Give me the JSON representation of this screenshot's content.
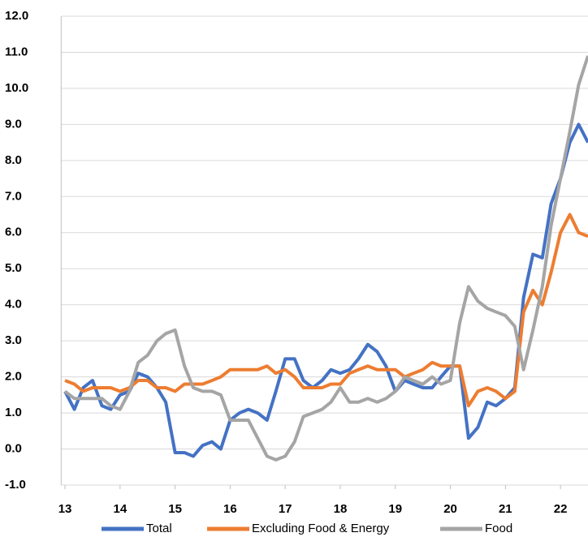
{
  "chart_data": {
    "type": "line",
    "x": [
      13,
      13.17,
      13.33,
      13.5,
      13.67,
      13.83,
      14,
      14.17,
      14.33,
      14.5,
      14.67,
      14.83,
      15,
      15.17,
      15.33,
      15.5,
      15.67,
      15.83,
      16,
      16.17,
      16.33,
      16.5,
      16.67,
      16.83,
      17,
      17.17,
      17.33,
      17.5,
      17.67,
      17.83,
      18,
      18.17,
      18.33,
      18.5,
      18.67,
      18.83,
      19,
      19.17,
      19.33,
      19.5,
      19.67,
      19.83,
      20,
      20.17,
      20.33,
      20.5,
      20.67,
      20.83,
      21,
      21.17,
      21.33,
      21.5,
      21.67,
      21.83,
      22,
      22.17,
      22.33,
      22.5
    ],
    "series": [
      {
        "name": "Total",
        "color": "#4472c4",
        "values": [
          1.6,
          1.1,
          1.7,
          1.9,
          1.2,
          1.1,
          1.5,
          1.6,
          2.1,
          2.0,
          1.7,
          1.3,
          -0.1,
          -0.1,
          -0.2,
          0.1,
          0.2,
          0.0,
          0.8,
          1.0,
          1.1,
          1.0,
          0.8,
          1.6,
          2.5,
          2.5,
          1.9,
          1.7,
          1.9,
          2.2,
          2.1,
          2.2,
          2.5,
          2.9,
          2.7,
          2.3,
          1.6,
          1.9,
          1.8,
          1.7,
          1.7,
          2.0,
          2.3,
          2.3,
          0.3,
          0.6,
          1.3,
          1.2,
          1.4,
          1.7,
          4.2,
          5.4,
          5.3,
          6.8,
          7.5,
          8.5,
          9.0,
          8.5
        ]
      },
      {
        "name": "Excluding Food & Energy",
        "color": "#ed7d31",
        "values": [
          1.9,
          1.8,
          1.6,
          1.7,
          1.7,
          1.7,
          1.6,
          1.7,
          1.9,
          1.9,
          1.7,
          1.7,
          1.6,
          1.8,
          1.8,
          1.8,
          1.9,
          2.0,
          2.2,
          2.2,
          2.2,
          2.2,
          2.3,
          2.1,
          2.2,
          2.0,
          1.7,
          1.7,
          1.7,
          1.8,
          1.8,
          2.1,
          2.2,
          2.3,
          2.2,
          2.2,
          2.2,
          2.0,
          2.1,
          2.2,
          2.4,
          2.3,
          2.3,
          2.3,
          1.2,
          1.6,
          1.7,
          1.6,
          1.4,
          1.6,
          3.8,
          4.4,
          4.0,
          4.9,
          6.0,
          6.5,
          6.0,
          5.9
        ]
      },
      {
        "name": "Food",
        "color": "#a5a5a5",
        "values": [
          1.6,
          1.4,
          1.4,
          1.4,
          1.4,
          1.2,
          1.1,
          1.6,
          2.4,
          2.6,
          3.0,
          3.2,
          3.3,
          2.3,
          1.7,
          1.6,
          1.6,
          1.5,
          0.8,
          0.8,
          0.8,
          0.3,
          -0.2,
          -0.3,
          -0.2,
          0.2,
          0.9,
          1.0,
          1.1,
          1.3,
          1.7,
          1.3,
          1.3,
          1.4,
          1.3,
          1.4,
          1.6,
          2.0,
          1.9,
          1.8,
          2.0,
          1.8,
          1.9,
          3.5,
          4.5,
          4.1,
          3.9,
          3.8,
          3.7,
          3.4,
          2.2,
          3.3,
          4.5,
          6.2,
          7.5,
          8.8,
          10.1,
          10.9
        ]
      }
    ],
    "xlim": [
      12.93,
      22.5
    ],
    "xticks": [
      13,
      14,
      15,
      16,
      17,
      18,
      19,
      20,
      21,
      22
    ],
    "ylim": [
      -1,
      12
    ],
    "yticks": [
      {
        "value": -1,
        "label": "-1.0"
      },
      {
        "value": 0,
        "label": "0.0"
      },
      {
        "value": 1,
        "label": "1.0"
      },
      {
        "value": 2,
        "label": "2.0"
      },
      {
        "value": 3,
        "label": "3.0"
      },
      {
        "value": 4,
        "label": "4.0"
      },
      {
        "value": 5,
        "label": "5.0"
      },
      {
        "value": 6,
        "label": "6.0"
      },
      {
        "value": 7,
        "label": "7.0"
      },
      {
        "value": 8,
        "label": "8.0"
      },
      {
        "value": 9,
        "label": "9.0"
      },
      {
        "value": 10,
        "label": "10.0"
      },
      {
        "value": 11,
        "label": "11.0"
      },
      {
        "value": 12,
        "label": "12.0"
      }
    ],
    "grid": true,
    "legend": "bottom"
  }
}
